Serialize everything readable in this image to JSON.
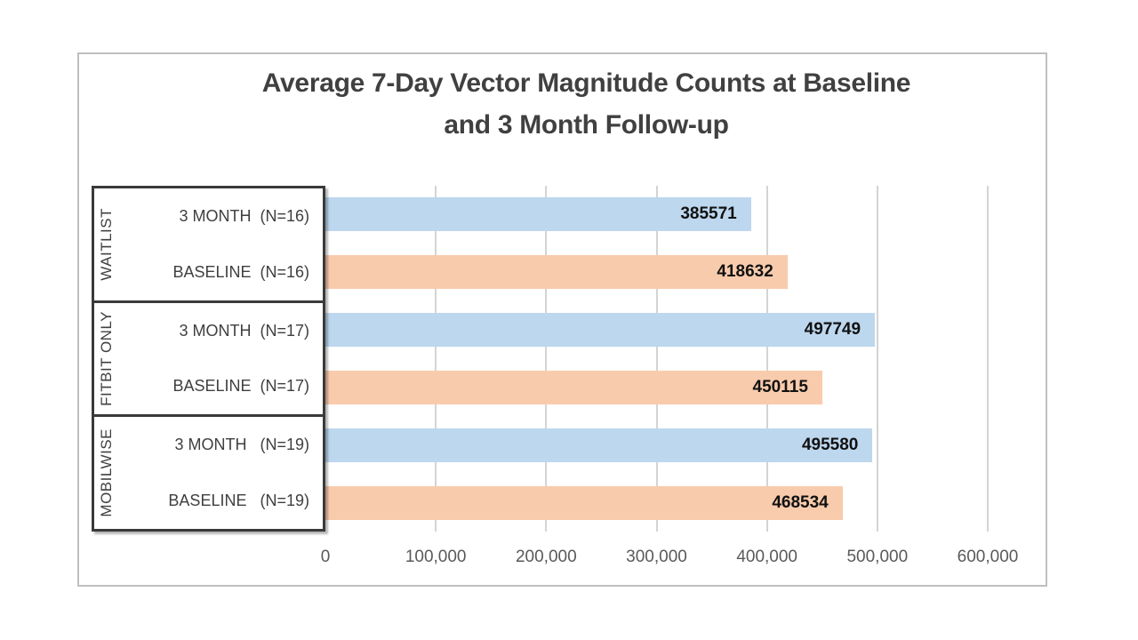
{
  "chart_data": {
    "type": "bar",
    "orientation": "horizontal",
    "title": "Average 7-Day Vector Magnitude Counts at Baseline and 3 Month Follow-up",
    "title_lines": [
      "Average 7-Day Vector Magnitude Counts at Baseline",
      "and 3 Month Follow-up"
    ],
    "xlabel": "",
    "ylabel": "",
    "xlim": [
      0,
      600000
    ],
    "xticks": [
      0,
      100000,
      200000,
      300000,
      400000,
      500000,
      600000
    ],
    "xtick_labels": [
      "0",
      "100,000",
      "200,000",
      "300,000",
      "400,000",
      "500,000",
      "600,000"
    ],
    "grid": true,
    "legend_position": "none",
    "series_colors": {
      "three_month": "#bdd7ee",
      "baseline": "#f8cbad"
    },
    "groups": [
      {
        "name": "WAITLIST",
        "bars": [
          {
            "label": "3 MONTH  (N=16)",
            "series": "3 MONTH",
            "value": 385571,
            "value_label": "385571"
          },
          {
            "label": "BASELINE  (N=16)",
            "series": "BASELINE",
            "value": 418632,
            "value_label": "418632"
          }
        ]
      },
      {
        "name": "FITBIT ONLY",
        "bars": [
          {
            "label": "3 MONTH  (N=17)",
            "series": "3 MONTH",
            "value": 497749,
            "value_label": "497749"
          },
          {
            "label": "BASELINE  (N=17)",
            "series": "BASELINE",
            "value": 450115,
            "value_label": "450115"
          }
        ]
      },
      {
        "name": "MOBILWISE",
        "bars": [
          {
            "label": "3 MONTH   (N=19)",
            "series": "3 MONTH",
            "value": 495580,
            "value_label": "495580"
          },
          {
            "label": "BASELINE   (N=19)",
            "series": "BASELINE",
            "value": 468534,
            "value_label": "468534"
          }
        ]
      }
    ]
  },
  "colors": {
    "bar_3_month": "#bdd7ee",
    "bar_baseline": "#f8cbad",
    "gridline": "#d4d4d4",
    "title_text": "#404040",
    "category_text": "#3f3f3f",
    "axis_text": "#595959",
    "value_text": "#111111",
    "label_box_border": "#3a3a3a",
    "chart_border": "#bfbfbf"
  }
}
